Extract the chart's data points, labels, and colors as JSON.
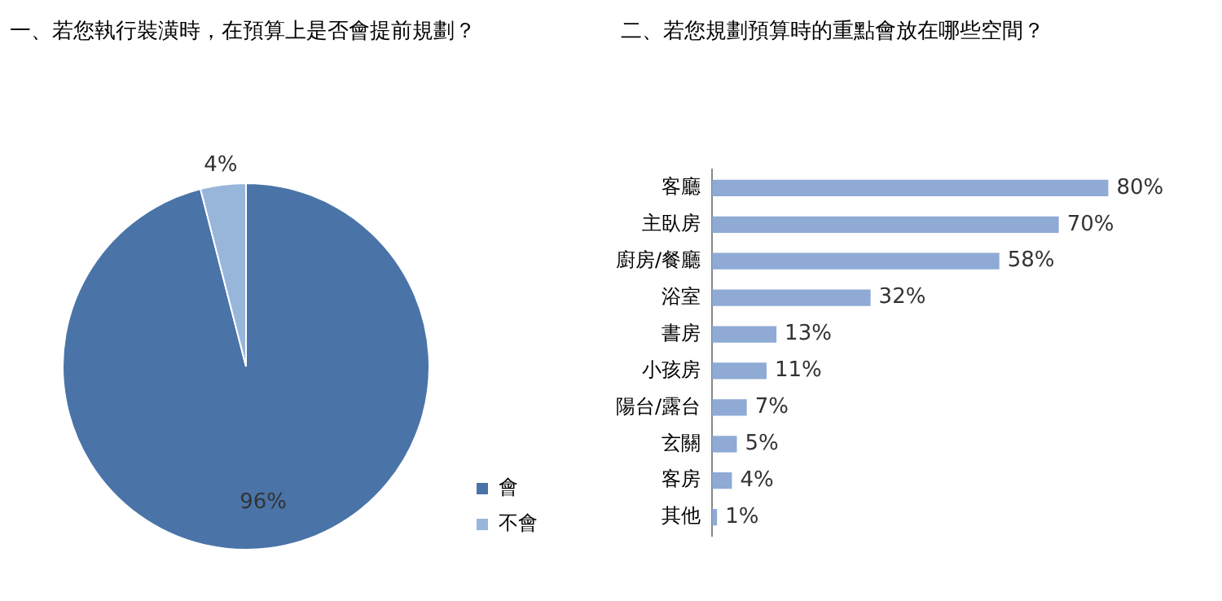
{
  "chart_data": [
    {
      "type": "pie",
      "title": "一、若您執行裝潢時，在預算上是否會提前規劃？",
      "categories": [
        "會",
        "不會"
      ],
      "values": [
        96,
        4
      ],
      "colors": [
        "#4a74a8",
        "#98b5da"
      ],
      "value_labels": [
        "96%",
        "4%"
      ],
      "legend": "right"
    },
    {
      "type": "bar",
      "orientation": "horizontal",
      "title": "二、若您規劃預算時的重點會放在哪些空間？",
      "categories": [
        "客廳",
        "主臥房",
        "廚房/餐廳",
        "浴室",
        "書房",
        "小孩房",
        "陽台/露台",
        "玄關",
        "客房",
        "其他"
      ],
      "values": [
        80,
        70,
        58,
        32,
        13,
        11,
        7,
        5,
        4,
        1
      ],
      "color": "#8eaad5",
      "value_labels": [
        "80%",
        "70%",
        "58%",
        "32%",
        "13%",
        "11%",
        "7%",
        "5%",
        "4%",
        "1%"
      ],
      "grid": false,
      "legend": false
    }
  ]
}
